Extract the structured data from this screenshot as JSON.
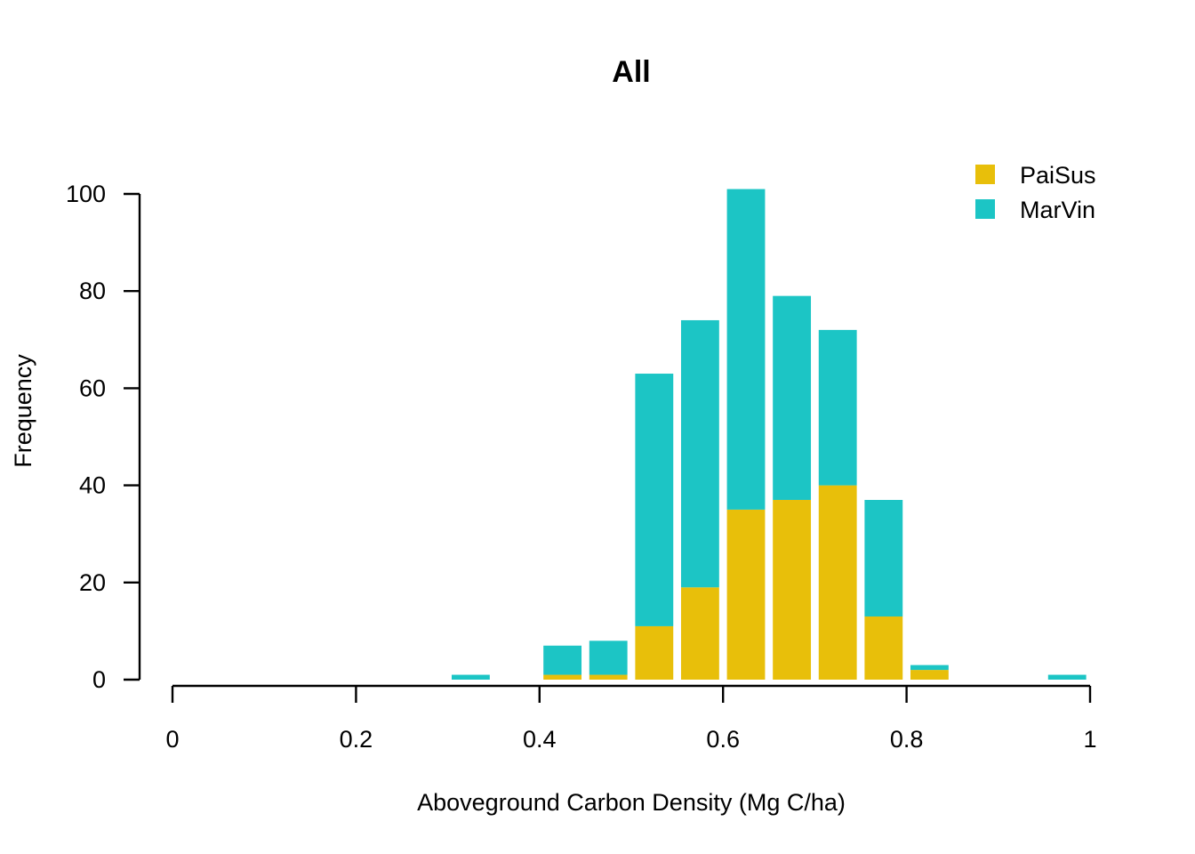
{
  "chart_data": {
    "type": "bar",
    "stacked": true,
    "title": "All",
    "xlabel": "Aboveground Carbon Density (Mg C/ha)",
    "ylabel": "Frequency",
    "xlim": [
      0,
      1
    ],
    "ylim": [
      0,
      100
    ],
    "x_ticks": [
      "0",
      "0.2",
      "0.4",
      "0.6",
      "0.8",
      "1"
    ],
    "y_ticks": [
      "0",
      "20",
      "40",
      "60",
      "80",
      "100"
    ],
    "bin_width": 0.05,
    "bin_starts": [
      0.3,
      0.35,
      0.4,
      0.45,
      0.5,
      0.55,
      0.6,
      0.65,
      0.7,
      0.75,
      0.8,
      0.85,
      0.9,
      0.95
    ],
    "series": [
      {
        "name": "PaiSus",
        "color": "#E8BF0A",
        "values": [
          0,
          0,
          1,
          1,
          11,
          19,
          35,
          37,
          40,
          13,
          2,
          0,
          0,
          0
        ]
      },
      {
        "name": "MarVin",
        "color": "#1CC5C5",
        "values": [
          1,
          0,
          6,
          7,
          52,
          55,
          66,
          42,
          32,
          24,
          1,
          0,
          0,
          1
        ]
      }
    ],
    "legend_position": "top-right",
    "grid": false
  }
}
